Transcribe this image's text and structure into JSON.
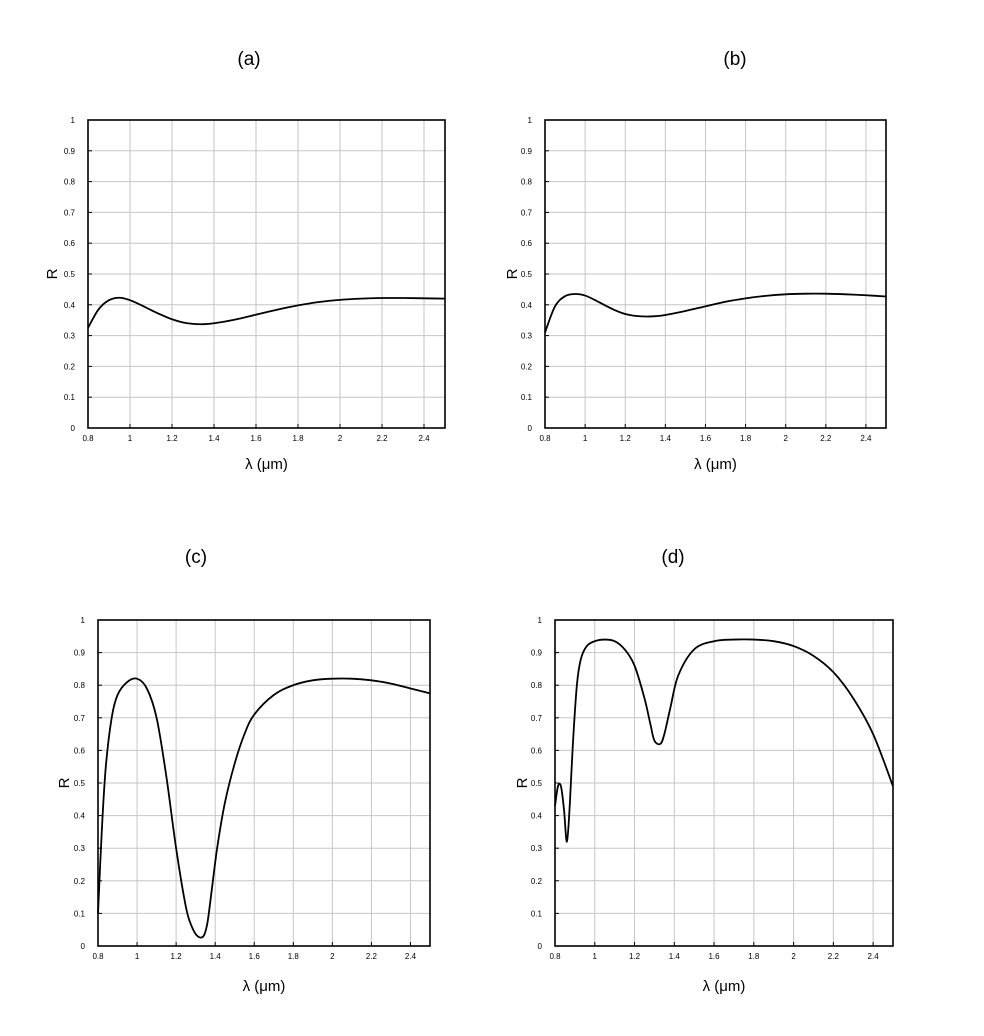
{
  "chart_data": [
    {
      "type": "line",
      "title": "(a)",
      "xlabel": "λ (μm)",
      "ylabel": "R",
      "xlim": [
        0.8,
        2.5
      ],
      "ylim": [
        0,
        1
      ],
      "xticks": [
        0.8,
        1,
        1.2,
        1.4,
        1.6,
        1.8,
        2,
        2.2,
        2.4
      ],
      "xtick_labels": [
        "0.8",
        "1",
        "1.2",
        "1.4",
        "1.6",
        "1.8",
        "2",
        "2.2",
        "2.4"
      ],
      "yticks": [
        0,
        0.1,
        0.2,
        0.3,
        0.4,
        0.5,
        0.6,
        0.7,
        0.8,
        0.9,
        1
      ],
      "ytick_labels": [
        "0",
        "0.1",
        "0.2",
        "0.3",
        "0.4",
        "0.5",
        "0.6",
        "0.7",
        "0.8",
        "0.9",
        "1"
      ],
      "grid": true,
      "series": [
        {
          "x": [
            0.8,
            0.85,
            0.9,
            0.95,
            1.0,
            1.05,
            1.1,
            1.15,
            1.2,
            1.25,
            1.3,
            1.35,
            1.4,
            1.5,
            1.6,
            1.7,
            1.8,
            1.9,
            2.0,
            2.1,
            2.2,
            2.3,
            2.4,
            2.5
          ],
          "y": [
            0.325,
            0.385,
            0.415,
            0.423,
            0.415,
            0.4,
            0.383,
            0.367,
            0.353,
            0.343,
            0.338,
            0.337,
            0.34,
            0.352,
            0.368,
            0.384,
            0.398,
            0.409,
            0.416,
            0.42,
            0.422,
            0.422,
            0.421,
            0.42
          ]
        }
      ]
    },
    {
      "type": "line",
      "title": "(b)",
      "xlabel": "λ (μm)",
      "ylabel": "R",
      "xlim": [
        0.8,
        2.5
      ],
      "ylim": [
        0,
        1
      ],
      "xticks": [
        0.8,
        1,
        1.2,
        1.4,
        1.6,
        1.8,
        2,
        2.2,
        2.4
      ],
      "xtick_labels": [
        "0.8",
        "1",
        "1.2",
        "1.4",
        "1.6",
        "1.8",
        "2",
        "2.2",
        "2.4"
      ],
      "yticks": [
        0,
        0.1,
        0.2,
        0.3,
        0.4,
        0.5,
        0.6,
        0.7,
        0.8,
        0.9,
        1
      ],
      "ytick_labels": [
        "0",
        "0.1",
        "0.2",
        "0.3",
        "0.4",
        "0.5",
        "0.6",
        "0.7",
        "0.8",
        "0.9",
        "1"
      ],
      "grid": true,
      "series": [
        {
          "x": [
            0.8,
            0.85,
            0.9,
            0.95,
            1.0,
            1.05,
            1.1,
            1.15,
            1.2,
            1.25,
            1.3,
            1.35,
            1.4,
            1.5,
            1.6,
            1.7,
            1.8,
            1.9,
            2.0,
            2.1,
            2.2,
            2.3,
            2.4,
            2.5
          ],
          "y": [
            0.31,
            0.395,
            0.428,
            0.435,
            0.43,
            0.415,
            0.398,
            0.382,
            0.37,
            0.364,
            0.362,
            0.363,
            0.367,
            0.38,
            0.395,
            0.41,
            0.421,
            0.429,
            0.434,
            0.436,
            0.436,
            0.434,
            0.431,
            0.427
          ]
        }
      ]
    },
    {
      "type": "line",
      "title": "(c)",
      "xlabel": "λ (μm)",
      "ylabel": "R",
      "xlim": [
        0.8,
        2.5
      ],
      "ylim": [
        0,
        1
      ],
      "xticks": [
        0.8,
        1,
        1.2,
        1.4,
        1.6,
        1.8,
        2,
        2.2,
        2.4
      ],
      "xtick_labels": [
        "0.8",
        "1",
        "1.2",
        "1.4",
        "1.6",
        "1.8",
        "2",
        "2.2",
        "2.4"
      ],
      "yticks": [
        0,
        0.1,
        0.2,
        0.3,
        0.4,
        0.5,
        0.6,
        0.7,
        0.8,
        0.9,
        1
      ],
      "ytick_labels": [
        "0",
        "0.1",
        "0.2",
        "0.3",
        "0.4",
        "0.5",
        "0.6",
        "0.7",
        "0.8",
        "0.9",
        "1"
      ],
      "grid": true,
      "series": [
        {
          "x": [
            0.8,
            0.82,
            0.84,
            0.87,
            0.9,
            0.95,
            1.0,
            1.05,
            1.1,
            1.15,
            1.2,
            1.25,
            1.28,
            1.31,
            1.34,
            1.36,
            1.38,
            1.41,
            1.45,
            1.5,
            1.55,
            1.6,
            1.7,
            1.8,
            1.9,
            2.0,
            2.1,
            2.2,
            2.3,
            2.4,
            2.5
          ],
          "y": [
            0.1,
            0.36,
            0.55,
            0.7,
            0.77,
            0.81,
            0.82,
            0.79,
            0.7,
            0.52,
            0.3,
            0.12,
            0.06,
            0.03,
            0.03,
            0.07,
            0.16,
            0.3,
            0.44,
            0.56,
            0.65,
            0.71,
            0.77,
            0.8,
            0.815,
            0.82,
            0.82,
            0.815,
            0.805,
            0.79,
            0.775
          ]
        }
      ]
    },
    {
      "type": "line",
      "title": "(d)",
      "xlabel": "λ (μm)",
      "ylabel": "R",
      "xlim": [
        0.8,
        2.5
      ],
      "ylim": [
        0,
        1
      ],
      "xticks": [
        0.8,
        1,
        1.2,
        1.4,
        1.6,
        1.8,
        2,
        2.2,
        2.4
      ],
      "xtick_labels": [
        "0.8",
        "1",
        "1.2",
        "1.4",
        "1.6",
        "1.8",
        "2",
        "2.2",
        "2.4"
      ],
      "yticks": [
        0,
        0.1,
        0.2,
        0.3,
        0.4,
        0.5,
        0.6,
        0.7,
        0.8,
        0.9,
        1
      ],
      "ytick_labels": [
        "0",
        "0.1",
        "0.2",
        "0.3",
        "0.4",
        "0.5",
        "0.6",
        "0.7",
        "0.8",
        "0.9",
        "1"
      ],
      "grid": true,
      "series": [
        {
          "x": [
            0.8,
            0.815,
            0.83,
            0.845,
            0.86,
            0.875,
            0.89,
            0.91,
            0.93,
            0.96,
            1.0,
            1.05,
            1.1,
            1.15,
            1.2,
            1.25,
            1.28,
            1.3,
            1.33,
            1.35,
            1.38,
            1.42,
            1.5,
            1.6,
            1.7,
            1.8,
            1.9,
            2.0,
            2.1,
            2.2,
            2.3,
            2.4,
            2.5
          ],
          "y": [
            0.43,
            0.49,
            0.49,
            0.42,
            0.32,
            0.44,
            0.62,
            0.8,
            0.88,
            0.92,
            0.935,
            0.94,
            0.935,
            0.91,
            0.86,
            0.76,
            0.68,
            0.63,
            0.62,
            0.65,
            0.73,
            0.83,
            0.91,
            0.935,
            0.94,
            0.94,
            0.935,
            0.92,
            0.89,
            0.84,
            0.76,
            0.65,
            0.49
          ]
        }
      ]
    }
  ]
}
